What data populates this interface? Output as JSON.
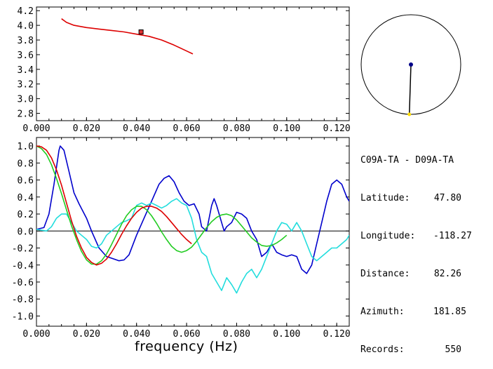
{
  "station_pair": "C09A-TA - D09A-TA",
  "info": {
    "latitude_label": "Latitude:",
    "latitude": "47.80",
    "longitude_label": "Longitude:",
    "longitude": "-118.27",
    "distance_label": "Distance:",
    "distance": "82.26",
    "azimuth_label": "Azimuth:",
    "azimuth": "181.85",
    "records_label": "Records:",
    "records": "550"
  },
  "colors": {
    "red": "#dd0000",
    "blue": "#0000cc",
    "cyan": "#22dddd",
    "green": "#22cc22",
    "axis": "#000000",
    "marker_fill": "#dd3333",
    "compass_dot": "#000088",
    "compass_end": "#ffdd00"
  },
  "chart_data": [
    {
      "type": "line",
      "xlabel": "",
      "ylabel": "",
      "xlim": [
        0.0,
        0.125
      ],
      "ylim": [
        2.7,
        4.25
      ],
      "xticks": [
        "0.000",
        "0.020",
        "0.040",
        "0.060",
        "0.080",
        "0.100",
        "0.120"
      ],
      "yticks": [
        "2.8",
        "3.0",
        "3.2",
        "3.4",
        "3.6",
        "3.8",
        "4.0",
        "4.2"
      ],
      "series": [
        {
          "color": "#dd0000",
          "x": [
            0.01,
            0.012,
            0.015,
            0.02,
            0.025,
            0.03,
            0.035,
            0.04,
            0.045,
            0.05,
            0.055,
            0.06,
            0.0625
          ],
          "y": [
            4.09,
            4.04,
            4.0,
            3.97,
            3.95,
            3.93,
            3.91,
            3.88,
            3.85,
            3.8,
            3.73,
            3.65,
            3.61
          ]
        }
      ],
      "markers": [
        {
          "x": 0.0418,
          "y": 3.91,
          "color": "#dd3333"
        }
      ]
    },
    {
      "type": "line",
      "xlabel": "frequency (Hz)",
      "ylabel": "",
      "xlim": [
        0.0,
        0.125
      ],
      "ylim": [
        -1.12,
        1.1
      ],
      "xticks": [
        "0.000",
        "0.020",
        "0.040",
        "0.060",
        "0.080",
        "0.100",
        "0.120"
      ],
      "yticks": [
        "1.0",
        "0.8",
        "0.6",
        "0.4",
        "0.2",
        "0.0",
        "-0.2",
        "-0.4",
        "-0.6",
        "-0.8",
        "-1.0"
      ],
      "zero_line": true,
      "series": [
        {
          "color": "#0000cc",
          "x": [
            0.0,
            0.003,
            0.005,
            0.007,
            0.009,
            0.0095,
            0.011,
            0.013,
            0.015,
            0.017,
            0.02,
            0.022,
            0.025,
            0.028,
            0.031,
            0.033,
            0.035,
            0.037,
            0.04,
            0.043,
            0.046,
            0.049,
            0.051,
            0.053,
            0.055,
            0.057,
            0.059,
            0.061,
            0.063,
            0.065,
            0.066,
            0.068,
            0.07,
            0.071,
            0.072,
            0.074,
            0.075,
            0.076,
            0.078,
            0.08,
            0.082,
            0.084,
            0.086,
            0.088,
            0.09,
            0.092,
            0.094,
            0.096,
            0.098,
            0.1,
            0.102,
            0.104,
            0.106,
            0.108,
            0.11,
            0.112,
            0.114,
            0.116,
            0.118,
            0.12,
            0.122,
            0.124,
            0.125
          ],
          "y": [
            0.02,
            0.04,
            0.2,
            0.55,
            0.95,
            1.0,
            0.95,
            0.7,
            0.45,
            0.32,
            0.15,
            0.0,
            -0.2,
            -0.3,
            -0.33,
            -0.35,
            -0.34,
            -0.28,
            -0.05,
            0.15,
            0.35,
            0.55,
            0.62,
            0.65,
            0.58,
            0.45,
            0.35,
            0.3,
            0.32,
            0.2,
            0.05,
            0.0,
            0.3,
            0.38,
            0.3,
            0.1,
            0.0,
            0.05,
            0.1,
            0.22,
            0.2,
            0.15,
            0.0,
            -0.1,
            -0.3,
            -0.25,
            -0.15,
            -0.25,
            -0.28,
            -0.3,
            -0.28,
            -0.3,
            -0.45,
            -0.5,
            -0.4,
            -0.15,
            0.1,
            0.35,
            0.55,
            0.6,
            0.55,
            0.4,
            0.35
          ]
        },
        {
          "color": "#22dddd",
          "x": [
            0.0,
            0.002,
            0.004,
            0.006,
            0.008,
            0.01,
            0.012,
            0.014,
            0.016,
            0.018,
            0.02,
            0.022,
            0.024,
            0.026,
            0.028,
            0.03,
            0.032,
            0.034,
            0.036,
            0.038,
            0.04,
            0.042,
            0.044,
            0.046,
            0.048,
            0.05,
            0.052,
            0.054,
            0.056,
            0.058,
            0.06,
            0.062,
            0.064,
            0.066,
            0.068,
            0.07,
            0.072,
            0.074,
            0.076,
            0.078,
            0.08,
            0.082,
            0.084,
            0.086,
            0.088,
            0.09,
            0.092,
            0.094,
            0.096,
            0.098,
            0.1,
            0.102,
            0.104,
            0.106,
            0.108,
            0.11,
            0.112,
            0.114,
            0.116,
            0.118,
            0.12,
            0.122,
            0.124,
            0.125
          ],
          "y": [
            0.02,
            0.01,
            0.0,
            0.05,
            0.15,
            0.2,
            0.2,
            0.1,
            0.0,
            -0.05,
            -0.1,
            -0.18,
            -0.2,
            -0.15,
            -0.05,
            0.0,
            0.05,
            0.1,
            0.12,
            0.15,
            0.3,
            0.33,
            0.3,
            0.33,
            0.3,
            0.27,
            0.3,
            0.35,
            0.38,
            0.33,
            0.3,
            0.15,
            -0.1,
            -0.25,
            -0.3,
            -0.5,
            -0.6,
            -0.7,
            -0.55,
            -0.63,
            -0.73,
            -0.6,
            -0.5,
            -0.45,
            -0.55,
            -0.45,
            -0.3,
            -0.15,
            0.0,
            0.1,
            0.08,
            0.0,
            0.1,
            0.0,
            -0.15,
            -0.3,
            -0.35,
            -0.3,
            -0.25,
            -0.2,
            -0.2,
            -0.15,
            -0.1,
            -0.05
          ]
        },
        {
          "color": "#22cc22",
          "x": [
            0.0,
            0.002,
            0.004,
            0.006,
            0.008,
            0.01,
            0.012,
            0.014,
            0.016,
            0.018,
            0.02,
            0.022,
            0.024,
            0.026,
            0.028,
            0.03,
            0.032,
            0.034,
            0.036,
            0.038,
            0.04,
            0.042,
            0.044,
            0.046,
            0.048,
            0.05,
            0.052,
            0.054,
            0.056,
            0.058,
            0.06,
            0.062,
            0.064,
            0.066,
            0.068,
            0.07,
            0.072,
            0.074,
            0.076,
            0.078,
            0.08,
            0.082,
            0.084,
            0.086,
            0.088,
            0.09,
            0.092,
            0.094,
            0.096,
            0.098,
            0.1
          ],
          "y": [
            1.0,
            0.97,
            0.9,
            0.78,
            0.62,
            0.44,
            0.25,
            0.06,
            -0.1,
            -0.24,
            -0.34,
            -0.39,
            -0.39,
            -0.35,
            -0.27,
            -0.16,
            -0.04,
            0.08,
            0.18,
            0.25,
            0.29,
            0.29,
            0.25,
            0.18,
            0.09,
            -0.01,
            -0.1,
            -0.18,
            -0.23,
            -0.25,
            -0.23,
            -0.19,
            -0.12,
            -0.04,
            0.04,
            0.11,
            0.16,
            0.19,
            0.2,
            0.18,
            0.13,
            0.06,
            -0.01,
            -0.08,
            -0.13,
            -0.17,
            -0.18,
            -0.17,
            -0.14,
            -0.1,
            -0.05
          ]
        },
        {
          "color": "#dd0000",
          "x": [
            0.0,
            0.002,
            0.004,
            0.006,
            0.008,
            0.01,
            0.012,
            0.014,
            0.016,
            0.018,
            0.02,
            0.022,
            0.024,
            0.026,
            0.028,
            0.03,
            0.032,
            0.034,
            0.036,
            0.038,
            0.04,
            0.042,
            0.044,
            0.046,
            0.048,
            0.05,
            0.052,
            0.054,
            0.056,
            0.058,
            0.06,
            0.062
          ],
          "y": [
            1.0,
            0.99,
            0.95,
            0.86,
            0.72,
            0.54,
            0.33,
            0.12,
            -0.06,
            -0.2,
            -0.31,
            -0.37,
            -0.4,
            -0.38,
            -0.33,
            -0.25,
            -0.15,
            -0.04,
            0.06,
            0.15,
            0.22,
            0.27,
            0.29,
            0.29,
            0.27,
            0.23,
            0.17,
            0.1,
            0.03,
            -0.04,
            -0.1,
            -0.15
          ]
        }
      ]
    }
  ],
  "compass": {
    "azimuth_deg": 181.85
  }
}
